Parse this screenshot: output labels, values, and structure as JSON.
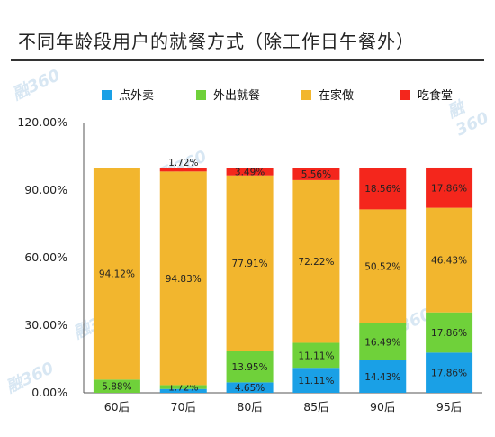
{
  "title": "不同年龄段用户的就餐方式（除工作日午餐外）",
  "watermark": "融360",
  "chart_data": {
    "type": "bar",
    "stacked": true,
    "title": "不同年龄段用户的就餐方式（除工作日午餐外）",
    "categories": [
      "60后",
      "70后",
      "80后",
      "85后",
      "90后",
      "95后"
    ],
    "series": [
      {
        "name": "点外卖",
        "color": "#1aa0e6",
        "values": [
          0,
          1.72,
          4.65,
          11.11,
          14.43,
          17.86
        ],
        "labels": [
          "",
          "",
          "4.65%",
          "11.11%",
          "14.43%",
          "17.86%"
        ]
      },
      {
        "name": "外出就餐",
        "color": "#6fd13a",
        "values": [
          5.88,
          1.72,
          13.95,
          11.11,
          16.49,
          17.86
        ],
        "labels": [
          "5.88%",
          "1.72%",
          "13.95%",
          "11.11%",
          "16.49%",
          "17.86%"
        ]
      },
      {
        "name": "在家做",
        "color": "#f2b62e",
        "values": [
          94.12,
          94.83,
          77.91,
          72.22,
          50.52,
          46.43
        ],
        "labels": [
          "94.12%",
          "94.83%",
          "77.91%",
          "72.22%",
          "50.52%",
          "46.43%"
        ]
      },
      {
        "name": "吃食堂",
        "color": "#f4261c",
        "values": [
          0,
          1.72,
          3.49,
          5.56,
          18.56,
          17.86
        ],
        "labels": [
          "",
          "1.72%",
          "3.49%",
          "5.56%",
          "18.56%",
          "17.86%"
        ]
      }
    ],
    "yticks": [
      "0.00%",
      "30.00%",
      "60.00%",
      "90.00%",
      "120.00%"
    ],
    "ylim": [
      0,
      120
    ],
    "legend_position": "top",
    "grid": false
  }
}
